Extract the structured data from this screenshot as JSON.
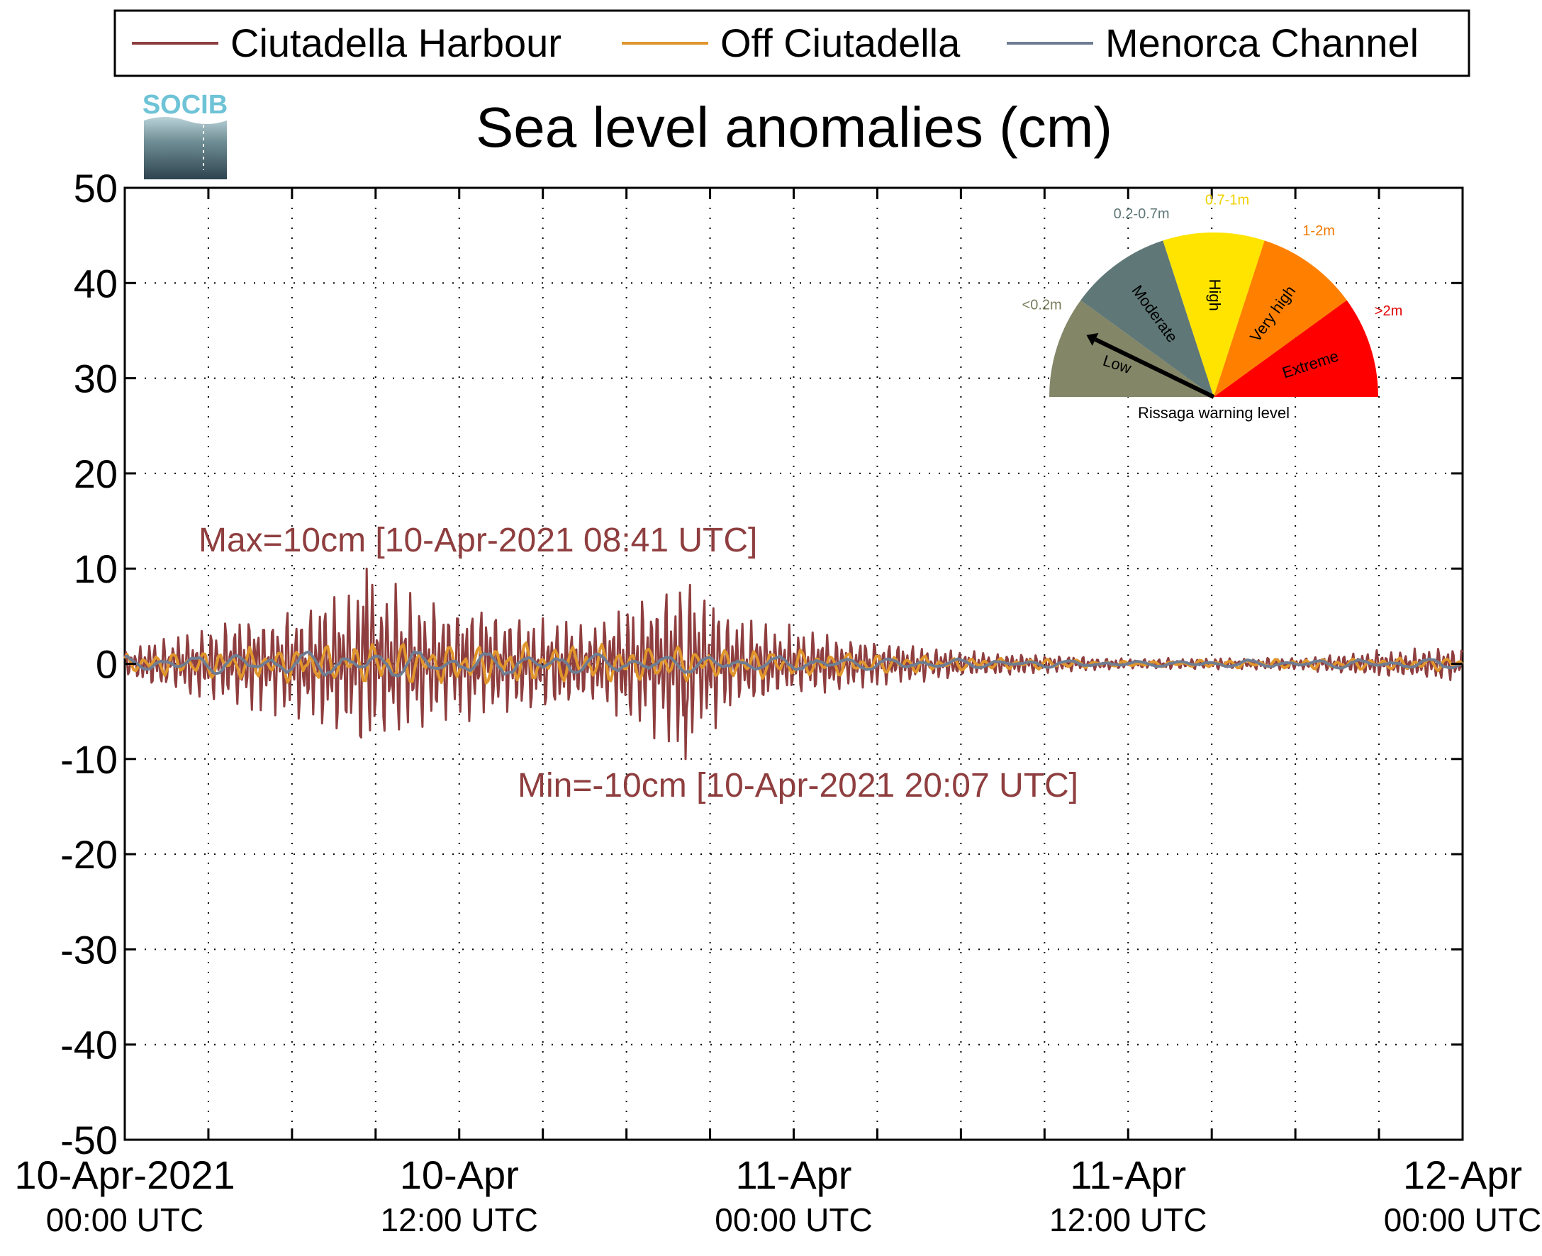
{
  "title": "Sea level anomalies (cm)",
  "logo_text": "SOCIB",
  "legend": [
    {
      "label": "Ciutadella Harbour",
      "color": "#8f3e3f"
    },
    {
      "label": "Off Ciutadella",
      "color": "#e0962c"
    },
    {
      "label": "Menorca Channel",
      "color": "#6f7d93"
    }
  ],
  "annotations": {
    "max": "Max=10cm [10-Apr-2021 08:41 UTC]",
    "min": "Min=-10cm [10-Apr-2021 20:07 UTC]"
  },
  "gauge": {
    "title": "Rissaga warning level",
    "level": "Low",
    "sectors": [
      {
        "name": "Low",
        "range": "<0.2m",
        "color": "#838667",
        "range_color": "#7a7d5e"
      },
      {
        "name": "Moderate",
        "range": "0.2-0.7m",
        "color": "#5f7777",
        "range_color": "#5f7777"
      },
      {
        "name": "High",
        "range": "0.7-1m",
        "color": "#ffe400",
        "range_color": "#f0d000"
      },
      {
        "name": "Very high",
        "range": "1-2m",
        "color": "#ff8000",
        "range_color": "#f07800"
      },
      {
        "name": "Extreme",
        "range": ">2m",
        "color": "#ff0000",
        "range_color": "#e00000"
      }
    ]
  },
  "chart_data": {
    "type": "line",
    "title": "Sea level anomalies (cm)",
    "ylabel": "",
    "xlabel": "",
    "ylim": [
      -50,
      50
    ],
    "yticks": [
      -50,
      -40,
      -30,
      -20,
      -10,
      0,
      10,
      20,
      30,
      40,
      50
    ],
    "xlim": [
      "10-Apr-2021 00:00 UTC",
      "12-Apr-2021 00:00 UTC"
    ],
    "xticks": [
      {
        "date": "10-Apr-2021",
        "time": "00:00 UTC"
      },
      {
        "date": "10-Apr",
        "time": "12:00 UTC"
      },
      {
        "date": "11-Apr",
        "time": "00:00 UTC"
      },
      {
        "date": "11-Apr",
        "time": "12:00 UTC"
      },
      {
        "date": "12-Apr",
        "time": "00:00 UTC"
      }
    ],
    "grid": true,
    "legend_position": "top",
    "series": [
      {
        "name": "Ciutadella Harbour",
        "color": "#8f3e3f",
        "amplitude_envelope_cm": [
          {
            "t": "10-Apr-2021 00:00 UTC",
            "amp": 1.5
          },
          {
            "t": "10-Apr-2021 02:00 UTC",
            "amp": 3.5
          },
          {
            "t": "10-Apr-2021 04:00 UTC",
            "amp": 5
          },
          {
            "t": "10-Apr-2021 06:00 UTC",
            "amp": 6
          },
          {
            "t": "10-Apr-2021 08:00 UTC",
            "amp": 8.5
          },
          {
            "t": "10-Apr-2021 08:41 UTC",
            "amp": 10
          },
          {
            "t": "10-Apr-2021 11:00 UTC",
            "amp": 7.5
          },
          {
            "t": "10-Apr-2021 14:00 UTC",
            "amp": 5.5
          },
          {
            "t": "10-Apr-2021 17:00 UTC",
            "amp": 5
          },
          {
            "t": "10-Apr-2021 20:07 UTC",
            "amp": 10
          },
          {
            "t": "10-Apr-2021 22:00 UTC",
            "amp": 5
          },
          {
            "t": "11-Apr-2021 02:00 UTC",
            "amp": 3
          },
          {
            "t": "11-Apr-2021 06:00 UTC",
            "amp": 1.5
          },
          {
            "t": "11-Apr-2021 12:00 UTC",
            "amp": 0.6
          },
          {
            "t": "11-Apr-2021 18:00 UTC",
            "amp": 0.7
          },
          {
            "t": "11-Apr-2021 21:00 UTC",
            "amp": 1.5
          },
          {
            "t": "12-Apr-2021 00:00 UTC",
            "amp": 2
          }
        ],
        "max": {
          "value": 10,
          "time": "10-Apr-2021 08:41 UTC"
        },
        "min": {
          "value": -10,
          "time": "10-Apr-2021 20:07 UTC"
        }
      },
      {
        "name": "Off Ciutadella",
        "color": "#e0962c",
        "amplitude_envelope_cm": [
          {
            "t": "10-Apr-2021 00:00 UTC",
            "amp": 1
          },
          {
            "t": "10-Apr-2021 09:00 UTC",
            "amp": 2.5
          },
          {
            "t": "10-Apr-2021 20:00 UTC",
            "amp": 2
          },
          {
            "t": "11-Apr-2021 06:00 UTC",
            "amp": 0.8
          },
          {
            "t": "11-Apr-2021 12:00 UTC",
            "amp": 0.3
          },
          {
            "t": "12-Apr-2021 00:00 UTC",
            "amp": 0.8
          }
        ]
      },
      {
        "name": "Menorca Channel",
        "color": "#6f7d93",
        "amplitude_envelope_cm": [
          {
            "t": "10-Apr-2021 00:00 UTC",
            "amp": 0.8
          },
          {
            "t": "10-Apr-2021 09:00 UTC",
            "amp": 1.5
          },
          {
            "t": "11-Apr-2021 00:00 UTC",
            "amp": 0.8
          },
          {
            "t": "11-Apr-2021 12:00 UTC",
            "amp": 0.3
          },
          {
            "t": "12-Apr-2021 00:00 UTC",
            "amp": 0.6
          }
        ]
      }
    ]
  }
}
